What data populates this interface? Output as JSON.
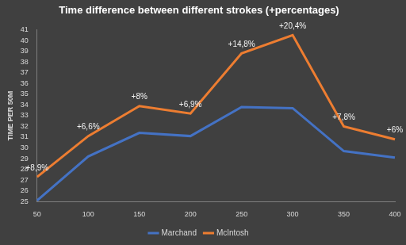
{
  "chart_data": {
    "type": "line",
    "title": "Time difference between different strokes (+percentages)",
    "y_label": "TIME PER 50M",
    "categories": [
      "50",
      "100",
      "150",
      "200",
      "250",
      "300",
      "350",
      "400"
    ],
    "series": [
      {
        "name": "Marchand",
        "color": "#4472c4",
        "values": [
          25.1,
          29.2,
          31.4,
          31.1,
          33.8,
          33.7,
          29.7,
          29.1
        ]
      },
      {
        "name": "McIntosh",
        "color": "#ed7d31",
        "values": [
          27.3,
          31.1,
          33.9,
          33.2,
          38.8,
          40.5,
          32.0,
          30.8
        ]
      }
    ],
    "annotations": [
      "+8,9%",
      "+6,6%",
      "+8%",
      "+6,9%",
      "+14,8%",
      "+20,4%",
      "+7,8%",
      "+6%"
    ],
    "ylim": [
      25,
      41
    ],
    "yticks": [
      25,
      26,
      27,
      28,
      29,
      30,
      31,
      32,
      33,
      34,
      35,
      36,
      37,
      38,
      39,
      40,
      41
    ],
    "grid": false,
    "legend": "bottom"
  }
}
